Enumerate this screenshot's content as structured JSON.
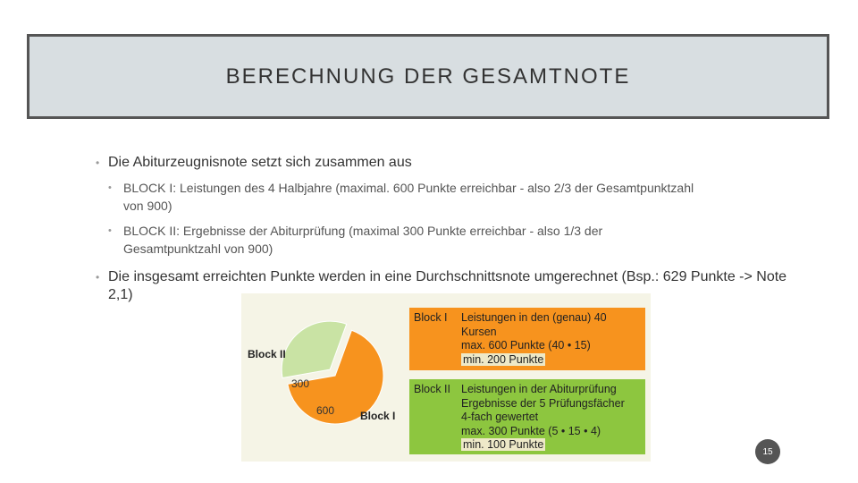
{
  "header": {
    "title": "BERECHNUNG DER GESAMTNOTE"
  },
  "bullets": [
    {
      "text": "Die Abiturzeugnisnote setzt sich zusammen aus",
      "sub": [
        "BLOCK I: Leistungen des 4 Halbjahre (maximal. 600 Punkte erreichbar - also 2/3 der Gesamtpunktzahl von 900)",
        "BLOCK II: Ergebnisse der Abiturprüfung (maximal 300 Punkte erreichbar - also 1/3 der Gesamtpunktzahl von 900)"
      ]
    },
    {
      "text": "Die insgesamt erreichten Punkte werden in eine Durchschnittsnote umgerechnet (Bsp.: 629 Punkte -> Note 2,1)"
    }
  ],
  "figure": {
    "pie": {
      "labels": [
        "Block I",
        "Block II"
      ],
      "values": [
        600,
        300
      ],
      "colors": [
        "#f7931e",
        "#c9e3a4"
      ]
    },
    "boxes": [
      {
        "label": "Block I",
        "lines": [
          "Leistungen in den (genau) 40 Kursen",
          "max. 600 Punkte (40 • 15)",
          "min. 200 Punkte"
        ],
        "color": "#f7931e"
      },
      {
        "label": "Block II",
        "lines": [
          "Leistungen in der Abiturprüfung",
          "Ergebnisse der 5 Prüfungsfächer",
          "4-fach gewertet",
          "max. 300 Punkte (5 • 15 • 4)",
          "min. 100 Punkte"
        ],
        "color": "#8dc63f"
      }
    ]
  },
  "page_number": "15"
}
